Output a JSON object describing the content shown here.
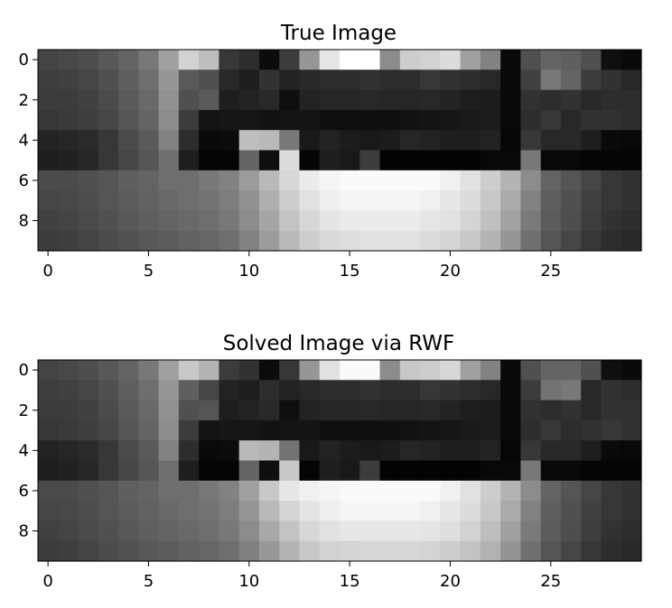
{
  "chart_data": [
    {
      "type": "heatmap",
      "title": "True Image",
      "colormap": "gray",
      "x_ticks": [
        "0",
        "5",
        "10",
        "15",
        "20",
        "25"
      ],
      "y_ticks": [
        "0",
        "2",
        "4",
        "6",
        "8"
      ],
      "rows": 10,
      "cols": 30,
      "values": [
        [
          68,
          72,
          78,
          88,
          100,
          120,
          160,
          210,
          190,
          55,
          45,
          12,
          60,
          150,
          230,
          255,
          255,
          140,
          205,
          210,
          220,
          160,
          130,
          10,
          80,
          100,
          95,
          80,
          15,
          10
        ],
        [
          62,
          64,
          70,
          80,
          95,
          110,
          150,
          90,
          80,
          40,
          30,
          50,
          35,
          40,
          45,
          45,
          50,
          45,
          45,
          55,
          50,
          45,
          40,
          10,
          65,
          120,
          100,
          60,
          50,
          40
        ],
        [
          60,
          60,
          65,
          75,
          90,
          105,
          145,
          80,
          90,
          30,
          35,
          40,
          15,
          35,
          38,
          38,
          40,
          38,
          38,
          40,
          35,
          30,
          28,
          8,
          50,
          45,
          50,
          40,
          45,
          45
        ],
        [
          55,
          58,
          62,
          70,
          85,
          100,
          140,
          60,
          20,
          22,
          22,
          18,
          20,
          20,
          15,
          15,
          16,
          16,
          18,
          20,
          22,
          25,
          28,
          8,
          45,
          55,
          40,
          50,
          50,
          45
        ],
        [
          35,
          38,
          42,
          55,
          75,
          90,
          130,
          45,
          10,
          12,
          190,
          185,
          120,
          25,
          35,
          28,
          25,
          28,
          38,
          35,
          30,
          30,
          35,
          6,
          55,
          40,
          40,
          30,
          10,
          8
        ],
        [
          30,
          33,
          38,
          55,
          70,
          85,
          110,
          30,
          5,
          5,
          100,
          15,
          220,
          5,
          30,
          25,
          60,
          3,
          3,
          3,
          3,
          3,
          8,
          8,
          120,
          8,
          8,
          5,
          5,
          5
        ],
        [
          75,
          75,
          80,
          85,
          95,
          100,
          110,
          110,
          120,
          130,
          155,
          185,
          215,
          235,
          245,
          250,
          250,
          250,
          250,
          250,
          240,
          225,
          205,
          180,
          140,
          100,
          85,
          70,
          55,
          50
        ],
        [
          70,
          72,
          78,
          85,
          92,
          98,
          105,
          110,
          115,
          125,
          145,
          175,
          205,
          225,
          238,
          245,
          245,
          245,
          245,
          240,
          230,
          220,
          200,
          170,
          130,
          95,
          80,
          65,
          55,
          50
        ],
        [
          65,
          68,
          74,
          80,
          88,
          95,
          100,
          105,
          110,
          120,
          140,
          165,
          195,
          215,
          228,
          235,
          235,
          235,
          235,
          230,
          225,
          212,
          192,
          162,
          122,
          92,
          78,
          62,
          50,
          45
        ],
        [
          60,
          62,
          68,
          75,
          82,
          88,
          92,
          98,
          102,
          110,
          130,
          155,
          185,
          205,
          218,
          222,
          225,
          225,
          225,
          220,
          212,
          200,
          180,
          150,
          112,
          85,
          70,
          55,
          45,
          40
        ]
      ]
    },
    {
      "type": "heatmap",
      "title": "Solved Image via RWF",
      "colormap": "gray",
      "x_ticks": [
        "0",
        "5",
        "10",
        "15",
        "20",
        "25"
      ],
      "y_ticks": [
        "0",
        "2",
        "4",
        "6",
        "8"
      ],
      "rows": 10,
      "cols": 30,
      "values": [
        [
          68,
          72,
          78,
          88,
          100,
          120,
          160,
          200,
          180,
          60,
          50,
          12,
          55,
          150,
          225,
          250,
          250,
          140,
          200,
          205,
          215,
          160,
          130,
          10,
          80,
          100,
          100,
          80,
          15,
          10
        ],
        [
          62,
          64,
          70,
          80,
          95,
          110,
          150,
          95,
          70,
          35,
          30,
          45,
          35,
          40,
          45,
          45,
          50,
          45,
          45,
          55,
          50,
          45,
          40,
          10,
          60,
          115,
          120,
          40,
          50,
          45
        ],
        [
          60,
          60,
          65,
          75,
          90,
          105,
          145,
          80,
          85,
          30,
          35,
          40,
          15,
          35,
          38,
          38,
          40,
          38,
          38,
          40,
          35,
          30,
          28,
          8,
          50,
          45,
          50,
          40,
          50,
          50
        ],
        [
          55,
          58,
          62,
          70,
          85,
          100,
          140,
          60,
          20,
          22,
          22,
          18,
          20,
          20,
          15,
          15,
          16,
          16,
          18,
          20,
          22,
          25,
          28,
          8,
          45,
          55,
          45,
          50,
          55,
          50
        ],
        [
          35,
          38,
          42,
          55,
          75,
          90,
          130,
          45,
          10,
          12,
          185,
          180,
          115,
          25,
          35,
          28,
          25,
          28,
          38,
          35,
          30,
          30,
          35,
          6,
          55,
          40,
          40,
          30,
          10,
          8
        ],
        [
          30,
          33,
          38,
          55,
          70,
          85,
          110,
          30,
          5,
          5,
          100,
          15,
          200,
          5,
          30,
          25,
          60,
          3,
          3,
          3,
          3,
          3,
          8,
          8,
          120,
          8,
          8,
          5,
          5,
          5
        ],
        [
          75,
          75,
          80,
          85,
          95,
          100,
          110,
          110,
          120,
          130,
          160,
          200,
          230,
          240,
          245,
          250,
          250,
          250,
          250,
          250,
          240,
          225,
          205,
          180,
          140,
          100,
          85,
          70,
          55,
          50
        ],
        [
          70,
          72,
          78,
          85,
          92,
          98,
          105,
          110,
          115,
          125,
          150,
          185,
          212,
          228,
          238,
          245,
          245,
          245,
          245,
          240,
          230,
          220,
          200,
          170,
          130,
          95,
          80,
          65,
          55,
          50
        ],
        [
          65,
          68,
          74,
          80,
          88,
          95,
          100,
          105,
          110,
          120,
          140,
          168,
          195,
          215,
          225,
          230,
          230,
          230,
          230,
          228,
          222,
          210,
          190,
          160,
          122,
          92,
          78,
          62,
          50,
          45
        ],
        [
          60,
          62,
          68,
          75,
          82,
          88,
          92,
          98,
          102,
          110,
          128,
          152,
          180,
          200,
          210,
          212,
          215,
          215,
          215,
          212,
          205,
          195,
          178,
          148,
          112,
          85,
          70,
          55,
          45,
          40
        ]
      ]
    }
  ]
}
